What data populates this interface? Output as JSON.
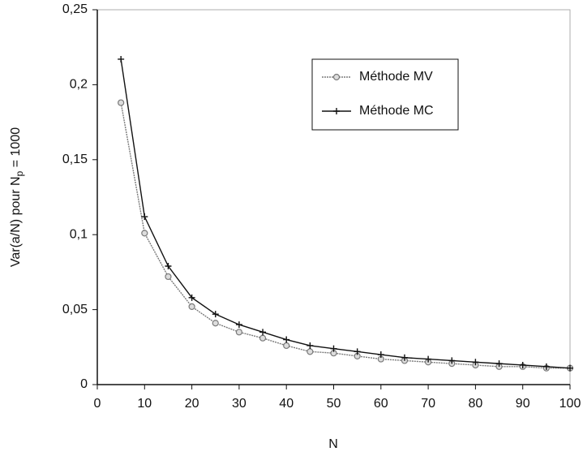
{
  "chart_data": {
    "type": "line",
    "xlabel": "N",
    "ylabel_parts": [
      "Var(a/N) pour N",
      "p",
      " = 1000"
    ],
    "x": [
      5,
      10,
      15,
      20,
      25,
      30,
      35,
      40,
      45,
      50,
      55,
      60,
      65,
      70,
      75,
      80,
      85,
      90,
      95,
      100
    ],
    "series": [
      {
        "name": "Méthode MV",
        "color": "#7a7a7a",
        "marker": "circle",
        "values": [
          0.188,
          0.101,
          0.072,
          0.052,
          0.041,
          0.035,
          0.031,
          0.026,
          0.022,
          0.021,
          0.019,
          0.017,
          0.016,
          0.015,
          0.014,
          0.013,
          0.012,
          0.012,
          0.011,
          0.011
        ]
      },
      {
        "name": "Méthode MC",
        "color": "#111111",
        "marker": "plus",
        "values": [
          0.217,
          0.112,
          0.079,
          0.058,
          0.047,
          0.04,
          0.035,
          0.03,
          0.026,
          0.024,
          0.022,
          0.02,
          0.018,
          0.017,
          0.016,
          0.015,
          0.014,
          0.013,
          0.012,
          0.011
        ]
      }
    ],
    "xlim": [
      0,
      100
    ],
    "xticks": [
      0,
      10,
      20,
      30,
      40,
      50,
      60,
      70,
      80,
      90,
      100
    ],
    "ylim": [
      0,
      0.25
    ],
    "yticks": [
      0,
      {
        "value": 0.05,
        "label": "0,05"
      },
      {
        "value": 0.1,
        "label": "0,1"
      },
      {
        "value": 0.15,
        "label": "0,15"
      },
      {
        "value": 0.2,
        "label": "0,2"
      },
      {
        "value": 0.25,
        "label": "0,25"
      }
    ],
    "legend": "upper-right"
  }
}
